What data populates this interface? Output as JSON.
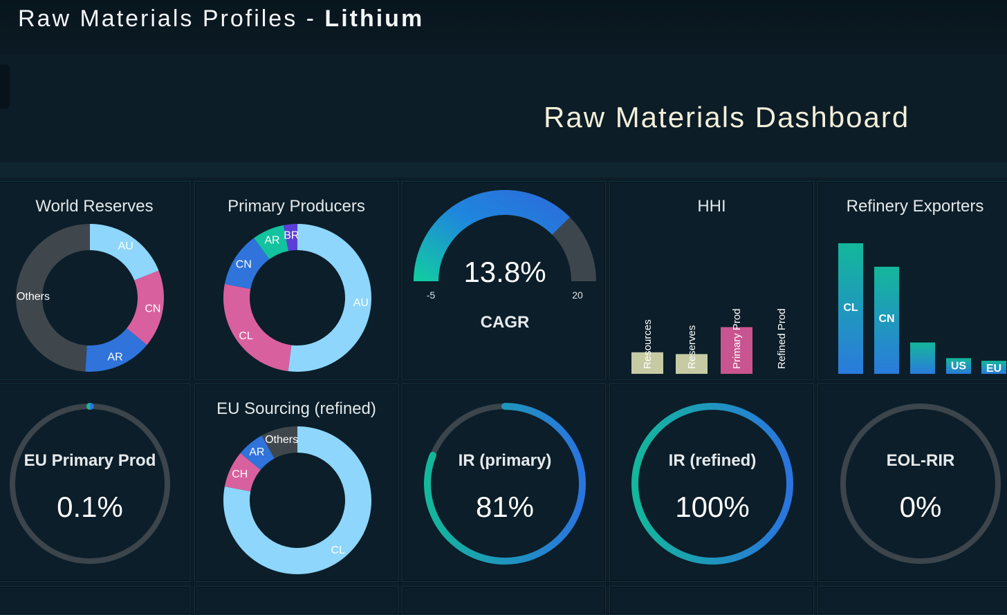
{
  "app": {
    "title_prefix": "Raw Materials Profiles - ",
    "title_material": "Lithium",
    "dashboard_title": "Raw Materials Dashboard"
  },
  "colors": {
    "background": "#0c1d27",
    "tile": "#0b1e29",
    "light_blue": "#8ed6fb",
    "pink": "#d9609e",
    "blue": "#2f73db",
    "teal": "#13c29e",
    "purple": "#5b3fd6",
    "dark_gray": "#3f474d",
    "olive": "#c6cba4",
    "hhi_pink": "#c8558f"
  },
  "tiles": {
    "world_reserves": {
      "title": "World Reserves",
      "chart_data": {
        "type": "pie",
        "labels": [
          "AU",
          "CN",
          "AR",
          "Others"
        ],
        "values": [
          19,
          17,
          15,
          49
        ],
        "colors": [
          "#8ed6fb",
          "#d9609e",
          "#2f73db",
          "#3f474d"
        ]
      }
    },
    "primary_producers": {
      "title": "Primary Producers",
      "chart_data": {
        "type": "pie",
        "labels": [
          "AU",
          "CL",
          "CN",
          "AR",
          "BR"
        ],
        "values": [
          52,
          26,
          12,
          7,
          3
        ],
        "colors": [
          "#8ed6fb",
          "#d9609e",
          "#2f73db",
          "#13c29e",
          "#5b3fd6"
        ]
      }
    },
    "cagr": {
      "value": "13.8%",
      "label": "CAGR",
      "min_label": "-5",
      "max_label": "20",
      "chart_data": {
        "type": "gauge",
        "value": 13.8,
        "min": -5,
        "max": 20
      }
    },
    "hhi": {
      "title": "HHI",
      "chart_data": {
        "type": "bar",
        "categories": [
          "Resources",
          "Reserves",
          "Primary Prod",
          "Refined Prod"
        ],
        "values": [
          0.12,
          0.11,
          0.26,
          0
        ],
        "colors": [
          "#c6cba4",
          "#c6cba4",
          "#c8558f",
          "#c6cba4"
        ]
      }
    },
    "refinery_exporters": {
      "title": "Refinery Exporters",
      "chart_data": {
        "type": "bar",
        "categories": [
          "CL",
          "CN",
          "AR",
          "US",
          "EU"
        ],
        "values": [
          100,
          82,
          24,
          12,
          10
        ]
      }
    },
    "eu_primary_prod": {
      "label": "EU Primary Prod",
      "value": "0.1%",
      "chart_data": {
        "type": "ring",
        "fraction": 0.001
      }
    },
    "eu_sourcing": {
      "title": "EU Sourcing (refined)",
      "chart_data": {
        "type": "pie",
        "labels": [
          "CL",
          "CH",
          "AR",
          "Others"
        ],
        "values": [
          78,
          8,
          6,
          8
        ],
        "colors": [
          "#8ed6fb",
          "#d9609e",
          "#2f73db",
          "#3f474d"
        ]
      }
    },
    "ir_primary": {
      "label": "IR (primary)",
      "value": "81%",
      "chart_data": {
        "type": "ring",
        "fraction": 0.81
      }
    },
    "ir_refined": {
      "label": "IR (refined)",
      "value": "100%",
      "chart_data": {
        "type": "ring",
        "fraction": 1.0
      }
    },
    "eol_rir": {
      "label": "EOL-RIR",
      "value": "0%",
      "chart_data": {
        "type": "ring",
        "fraction": 0
      }
    }
  }
}
